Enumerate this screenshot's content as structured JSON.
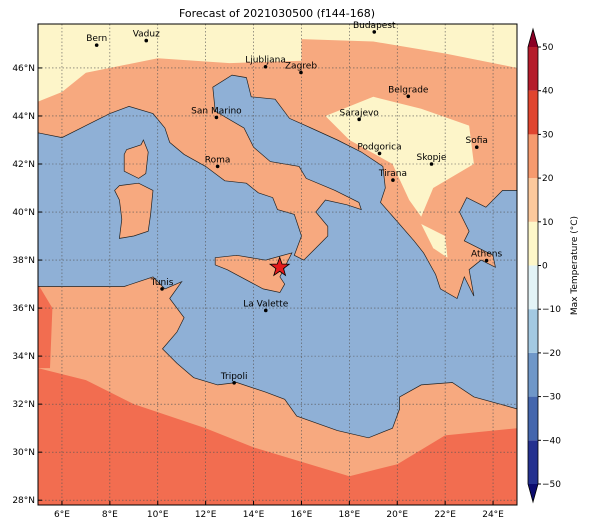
{
  "map": {
    "title": "Forecast of 2021030500 (f144-168)",
    "lon_range": [
      5,
      25
    ],
    "lat_range": [
      27.8,
      47.83
    ],
    "xticks": [
      {
        "value": 6,
        "label": "6°E"
      },
      {
        "value": 8,
        "label": "8°E"
      },
      {
        "value": 10,
        "label": "10°E"
      },
      {
        "value": 12,
        "label": "12°E"
      },
      {
        "value": 14,
        "label": "14°E"
      },
      {
        "value": 16,
        "label": "16°E"
      },
      {
        "value": 18,
        "label": "18°E"
      },
      {
        "value": 20,
        "label": "20°E"
      },
      {
        "value": 22,
        "label": "22°E"
      },
      {
        "value": 24,
        "label": "24°E"
      }
    ],
    "yticks": [
      {
        "value": 28,
        "label": "28°N"
      },
      {
        "value": 30,
        "label": "30°N"
      },
      {
        "value": 32,
        "label": "32°N"
      },
      {
        "value": 34,
        "label": "34°N"
      },
      {
        "value": 36,
        "label": "36°N"
      },
      {
        "value": 38,
        "label": "38°N"
      },
      {
        "value": 40,
        "label": "40°N"
      },
      {
        "value": 42,
        "label": "42°N"
      },
      {
        "value": 44,
        "label": "44°N"
      },
      {
        "value": 46,
        "label": "46°N"
      }
    ],
    "grid": true,
    "cities": [
      {
        "name": "Bern",
        "lon": 7.45,
        "lat": 46.95
      },
      {
        "name": "Vaduz",
        "lon": 9.52,
        "lat": 47.14
      },
      {
        "name": "Budapest",
        "lon": 19.04,
        "lat": 47.5
      },
      {
        "name": "Ljubljana",
        "lon": 14.5,
        "lat": 46.05
      },
      {
        "name": "Zagreb",
        "lon": 15.98,
        "lat": 45.81
      },
      {
        "name": "Belgrade",
        "lon": 20.46,
        "lat": 44.82
      },
      {
        "name": "San Marino",
        "lon": 12.45,
        "lat": 43.94
      },
      {
        "name": "Sarajevo",
        "lon": 18.41,
        "lat": 43.86
      },
      {
        "name": "Sofia",
        "lon": 23.32,
        "lat": 42.7
      },
      {
        "name": "Podgorica",
        "lon": 19.26,
        "lat": 42.44
      },
      {
        "name": "Skopje",
        "lon": 21.43,
        "lat": 42.0
      },
      {
        "name": "Roma",
        "lon": 12.5,
        "lat": 41.9
      },
      {
        "name": "Tirana",
        "lon": 19.82,
        "lat": 41.33
      },
      {
        "name": "Athens",
        "lon": 23.73,
        "lat": 37.98
      },
      {
        "name": "Tunis",
        "lon": 10.18,
        "lat": 36.8
      },
      {
        "name": "La Valette",
        "lon": 14.51,
        "lat": 35.9
      },
      {
        "name": "Tripoli",
        "lon": 13.19,
        "lat": 32.89
      }
    ],
    "marker": {
      "lon": 15.09,
      "lat": 37.7,
      "color": "#e41a1c"
    },
    "colorbar": {
      "label": "Max Temperature (°C)",
      "levels": [
        -50,
        -40,
        -30,
        -20,
        -10,
        0,
        10,
        20,
        30,
        40,
        50
      ],
      "colors": [
        "#24318f",
        "#4466ad",
        "#6f97c8",
        "#a3c9e2",
        "#e3f3f6",
        "#fef7c9",
        "#fdc99c",
        "#f69a6e",
        "#e0452f",
        "#b51c2b"
      ],
      "extend_colors": [
        "#0c0c6e",
        "#8a0024"
      ],
      "ticks": [
        {
          "value": -50,
          "label": "−50"
        },
        {
          "value": -40,
          "label": "−40"
        },
        {
          "value": -30,
          "label": "−30"
        },
        {
          "value": -20,
          "label": "−20"
        },
        {
          "value": -10,
          "label": "−10"
        },
        0,
        10,
        20,
        30,
        40,
        50
      ]
    }
  }
}
